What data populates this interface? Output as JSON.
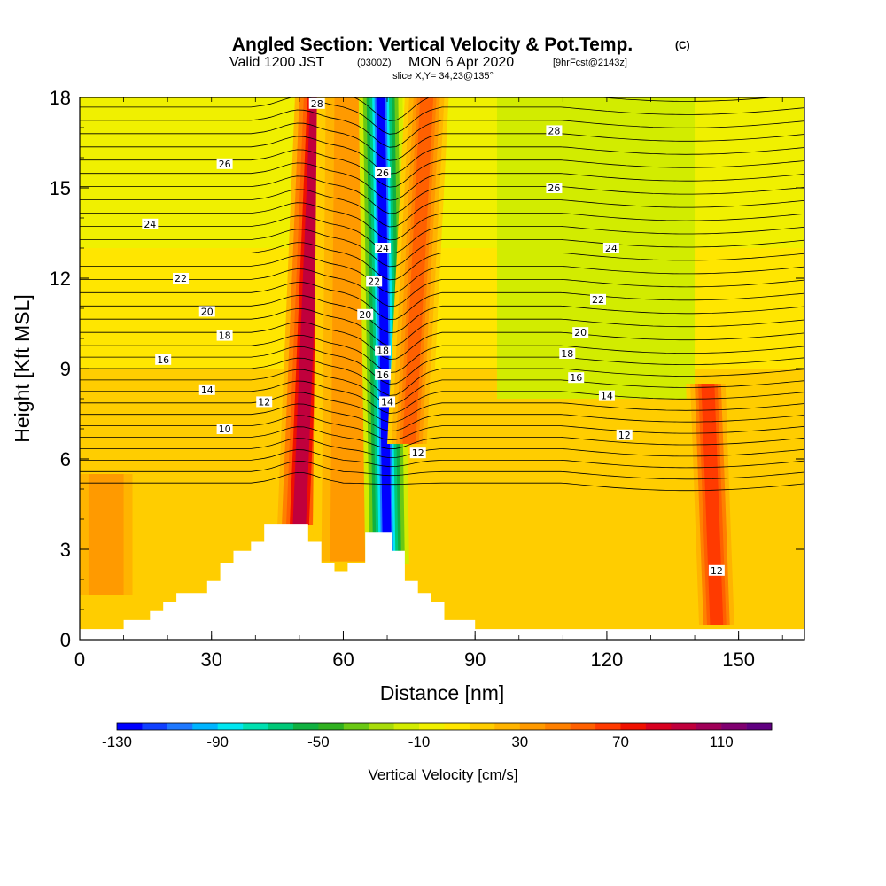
{
  "header": {
    "title": "Angled Section: Vertical Velocity & Pot.Temp.",
    "title_unit": "(C)",
    "valid_a": "Valid 1200 JST",
    "valid_b": "(0300Z)",
    "valid_c": "MON 6 Apr 2020",
    "valid_d": "[9hrFcst@2143z]",
    "slice": "slice X,Y= 34,23@135°"
  },
  "chart_data": {
    "type": "heatmap",
    "title": "Angled Section: Vertical Velocity & Pot.Temp. (C)",
    "xlabel": "Distance [nm]",
    "ylabel": "Height [Kft MSL]",
    "xlim": [
      0,
      165
    ],
    "ylim": [
      0,
      18
    ],
    "x_ticks": [
      0,
      30,
      60,
      90,
      120,
      150
    ],
    "y_ticks": [
      0,
      3,
      6,
      9,
      12,
      15,
      18
    ],
    "x_tick_labels": [
      "0",
      "30",
      "60",
      "90",
      "120",
      "150"
    ],
    "y_tick_labels": [
      "0",
      "3",
      "6",
      "9",
      "12",
      "15",
      "18"
    ],
    "colorbar": {
      "label": "Vertical Velocity [cm/s]",
      "min": -130,
      "max": 130,
      "step": 10,
      "tick_values": [
        -130,
        -90,
        -50,
        -10,
        30,
        70,
        110
      ],
      "tick_labels": [
        "-130",
        "-90",
        "-50",
        "-10",
        "30",
        "70",
        "110"
      ],
      "colors": [
        "#0000ff",
        "#1040ff",
        "#1e78ff",
        "#00b4ff",
        "#00e6f0",
        "#00e0b0",
        "#00c878",
        "#10b040",
        "#30b020",
        "#6ac814",
        "#a8dc0a",
        "#d2ec00",
        "#f0f000",
        "#ffe600",
        "#ffcd00",
        "#ffb400",
        "#ff9a00",
        "#ff8000",
        "#ff6000",
        "#ff3a00",
        "#f01000",
        "#d80020",
        "#c0003c",
        "#a00058",
        "#800070",
        "#600080"
      ]
    },
    "vertical_velocity_features": [
      {
        "x": 50,
        "x_at_top": 54,
        "z_bottom": 3.8,
        "z_top": 18,
        "w": 90
      },
      {
        "x": 61,
        "x_at_top": 62,
        "z_bottom": 2.6,
        "z_top": 18,
        "w": 30
      },
      {
        "x": 70,
        "x_at_top": 68.5,
        "z_bottom": 2.5,
        "z_top": 18,
        "w": -130
      },
      {
        "x": 75,
        "x_at_top": 79,
        "z_bottom": 6.5,
        "z_top": 18,
        "w": 50
      },
      {
        "x": 145,
        "x_at_top": 143,
        "z_bottom": 0.5,
        "z_top": 8.5,
        "w": 60
      },
      {
        "x": 6,
        "x_at_top": 6,
        "z_bottom": 1.5,
        "z_top": 5.5,
        "w": 30
      }
    ],
    "pot_temp_contours": {
      "interval": 1,
      "labels": [
        {
          "value": 28,
          "x": 54,
          "z": 17.8
        },
        {
          "value": 28,
          "x": 108,
          "z": 16.9
        },
        {
          "value": 26,
          "x": 33,
          "z": 15.8
        },
        {
          "value": 26,
          "x": 69,
          "z": 15.5
        },
        {
          "value": 26,
          "x": 108,
          "z": 15.0
        },
        {
          "value": 24,
          "x": 16,
          "z": 13.8
        },
        {
          "value": 24,
          "x": 69,
          "z": 13.0
        },
        {
          "value": 24,
          "x": 121,
          "z": 13.0
        },
        {
          "value": 22,
          "x": 23,
          "z": 12.0
        },
        {
          "value": 22,
          "x": 67,
          "z": 11.9
        },
        {
          "value": 22,
          "x": 118,
          "z": 11.3
        },
        {
          "value": 20,
          "x": 29,
          "z": 10.9
        },
        {
          "value": 20,
          "x": 65,
          "z": 10.8
        },
        {
          "value": 20,
          "x": 114,
          "z": 10.2
        },
        {
          "value": 18,
          "x": 33,
          "z": 10.1
        },
        {
          "value": 18,
          "x": 69,
          "z": 9.6
        },
        {
          "value": 18,
          "x": 111,
          "z": 9.5
        },
        {
          "value": 16,
          "x": 19,
          "z": 9.3
        },
        {
          "value": 16,
          "x": 69,
          "z": 8.8
        },
        {
          "value": 16,
          "x": 113,
          "z": 8.7
        },
        {
          "value": 14,
          "x": 29,
          "z": 8.3
        },
        {
          "value": 14,
          "x": 70,
          "z": 7.9
        },
        {
          "value": 14,
          "x": 120,
          "z": 8.1
        },
        {
          "value": 12,
          "x": 42,
          "z": 7.9
        },
        {
          "value": 12,
          "x": 77,
          "z": 6.2
        },
        {
          "value": 12,
          "x": 124,
          "z": 6.8
        },
        {
          "value": 12,
          "x": 145,
          "z": 2.3
        },
        {
          "value": 10,
          "x": 33,
          "z": 7.0
        }
      ]
    },
    "terrain": [
      [
        0,
        0.35
      ],
      [
        10,
        0.35
      ],
      [
        10,
        0.65
      ],
      [
        16,
        0.65
      ],
      [
        16,
        0.95
      ],
      [
        19,
        0.95
      ],
      [
        19,
        1.25
      ],
      [
        22,
        1.25
      ],
      [
        22,
        1.55
      ],
      [
        29,
        1.55
      ],
      [
        29,
        1.95
      ],
      [
        32,
        1.95
      ],
      [
        32,
        2.55
      ],
      [
        35,
        2.55
      ],
      [
        35,
        2.95
      ],
      [
        39,
        2.95
      ],
      [
        39,
        3.25
      ],
      [
        42,
        3.25
      ],
      [
        42,
        3.85
      ],
      [
        52,
        3.85
      ],
      [
        52,
        3.25
      ],
      [
        55,
        3.25
      ],
      [
        55,
        2.55
      ],
      [
        58,
        2.55
      ],
      [
        58,
        2.25
      ],
      [
        61,
        2.25
      ],
      [
        61,
        2.55
      ],
      [
        65,
        2.55
      ],
      [
        65,
        3.55
      ],
      [
        71,
        3.55
      ],
      [
        71,
        2.95
      ],
      [
        74,
        2.95
      ],
      [
        74,
        1.95
      ],
      [
        77,
        1.95
      ],
      [
        77,
        1.55
      ],
      [
        80,
        1.55
      ],
      [
        80,
        1.25
      ],
      [
        83,
        1.25
      ],
      [
        83,
        0.65
      ],
      [
        90,
        0.65
      ],
      [
        90,
        0.35
      ],
      [
        165,
        0.35
      ]
    ]
  }
}
